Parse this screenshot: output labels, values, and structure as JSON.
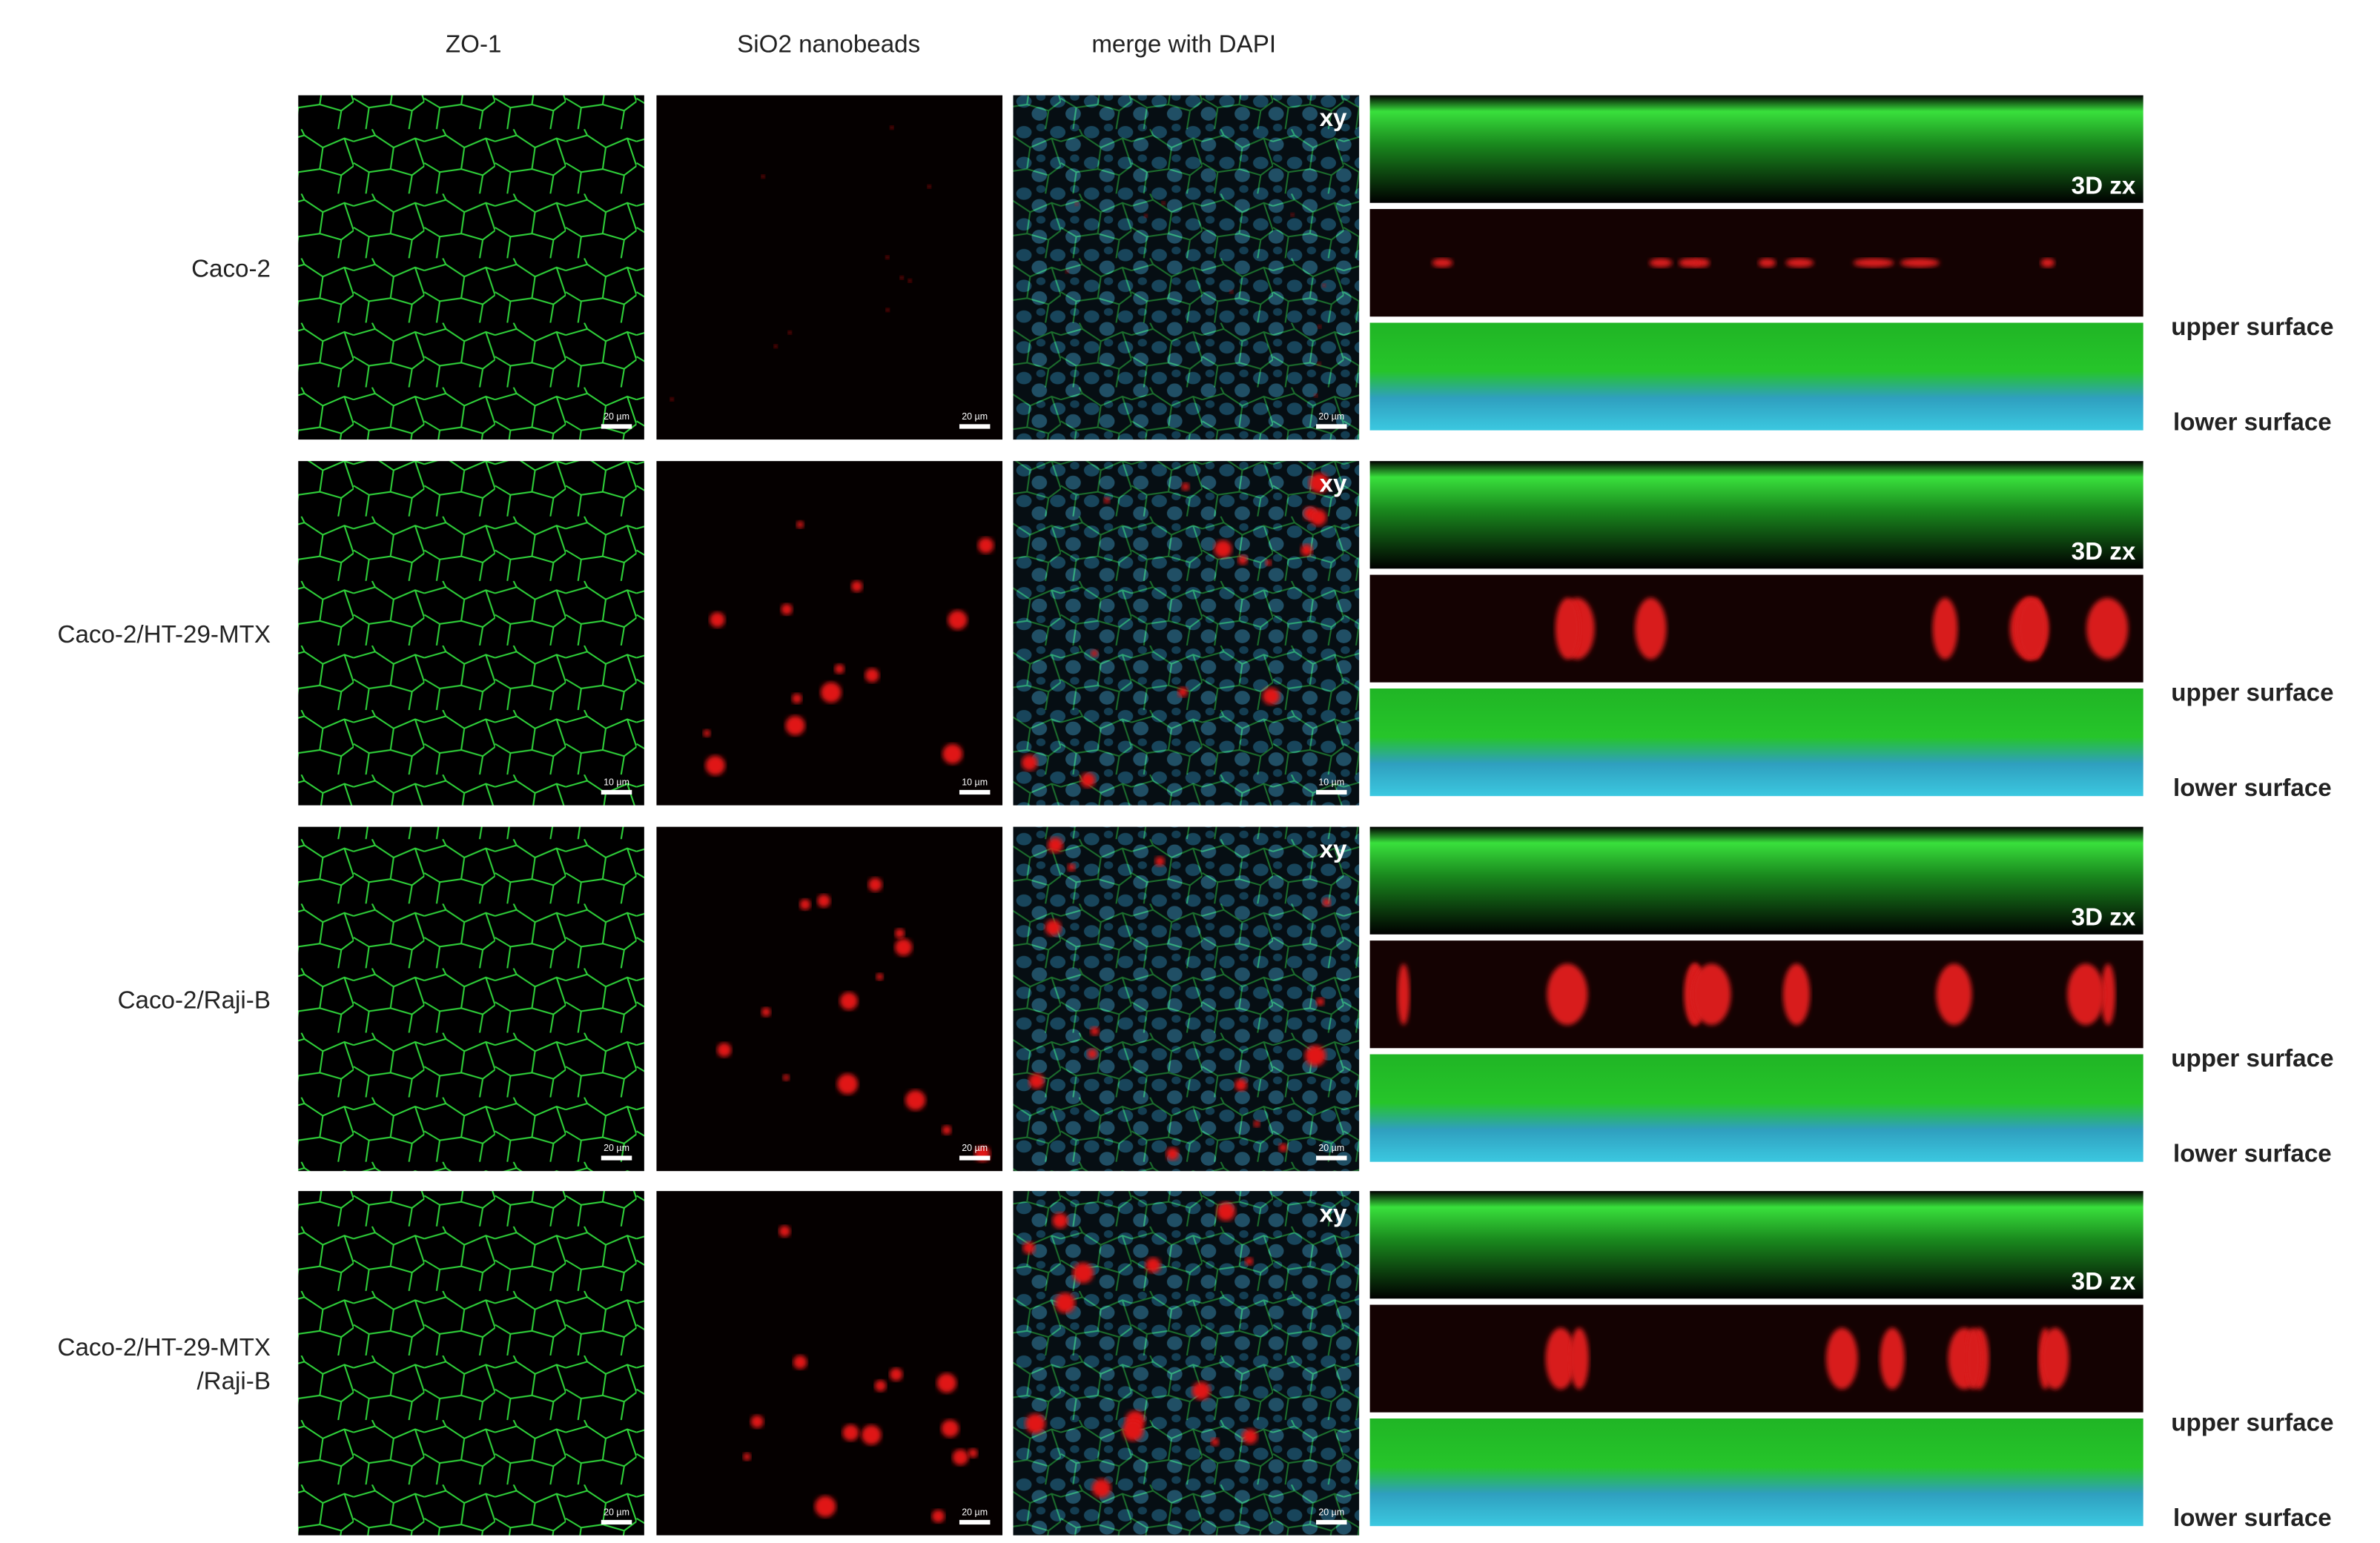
{
  "columns": [
    "ZO-1",
    "SiO2 nanobeads",
    "merge with DAPI"
  ],
  "rows": [
    {
      "label_lines": [
        "Caco-2"
      ],
      "scale_bars": [
        "20 µm",
        "20 µm",
        "20 µm"
      ],
      "xy": "xy",
      "zx": "3D zx",
      "upper": "upper surface",
      "lower": "lower surface"
    },
    {
      "label_lines": [
        "Caco-2/HT-29-MTX"
      ],
      "scale_bars": [
        "10 µm",
        "10 µm",
        "10 µm"
      ],
      "xy": "xy",
      "zx": "3D zx",
      "upper": "upper surface",
      "lower": "lower surface"
    },
    {
      "label_lines": [
        "Caco-2/Raji-B"
      ],
      "scale_bars": [
        "20 µm",
        "20 µm",
        "20 µm"
      ],
      "xy": "xy",
      "zx": "3D zx",
      "upper": "upper surface",
      "lower": "lower surface"
    },
    {
      "label_lines": [
        "Caco-2/HT-29-MTX",
        "/Raji-B"
      ],
      "scale_bars": [
        "20 µm",
        "20 µm",
        "20 µm"
      ],
      "xy": "xy",
      "zx": "3D zx",
      "upper": "upper surface",
      "lower": "lower surface"
    }
  ]
}
